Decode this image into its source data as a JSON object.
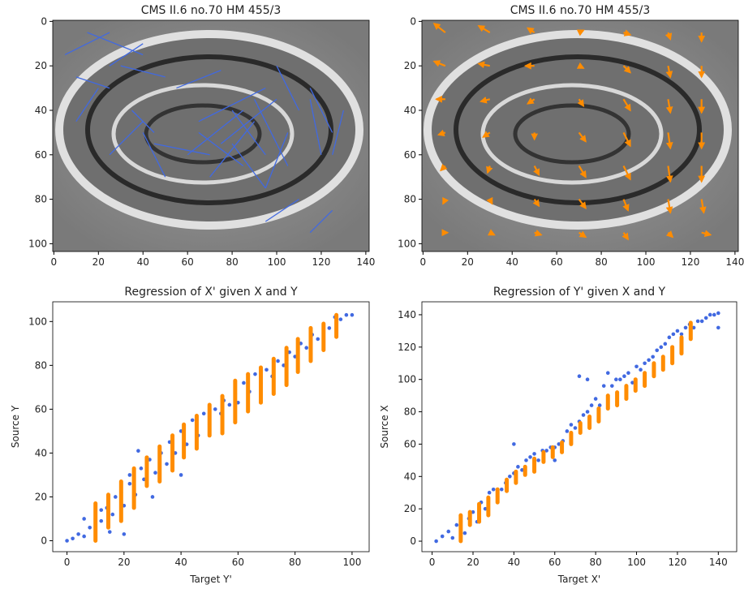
{
  "chart_data": [
    {
      "type": "quiver",
      "title": "CMS II.6 no.70 HM 455/3",
      "color": "#4169e1",
      "arrowheads": false,
      "xlim": [
        -0.5,
        141.5
      ],
      "ylim": [
        103.5,
        -0.5
      ],
      "xticks": [
        0,
        20,
        40,
        60,
        80,
        100,
        120,
        140
      ],
      "yticks": [
        0,
        20,
        40,
        60,
        80,
        100
      ],
      "x": [
        5,
        10,
        15,
        20,
        25,
        30,
        35,
        40,
        45,
        50,
        55,
        60,
        65,
        70,
        75,
        80,
        85,
        90,
        95,
        100,
        105,
        110,
        115,
        120,
        125,
        130
      ],
      "y": [
        15,
        25,
        5,
        30,
        60,
        20,
        40,
        10,
        55,
        70,
        30,
        60,
        45,
        70,
        55,
        40,
        65,
        35,
        75,
        20,
        50,
        80,
        30,
        60,
        85,
        40
      ],
      "u": [
        20,
        15,
        25,
        -10,
        15,
        20,
        10,
        -15,
        25,
        -10,
        20,
        25,
        30,
        20,
        25,
        15,
        -20,
        15,
        -15,
        10,
        -10,
        -15,
        10,
        -5,
        -10,
        -5
      ],
      "v": [
        -10,
        5,
        10,
        15,
        -15,
        5,
        10,
        10,
        5,
        -20,
        -8,
        -20,
        -15,
        -25,
        -20,
        20,
        -15,
        30,
        -20,
        20,
        25,
        10,
        20,
        -25,
        10,
        20
      ]
    },
    {
      "type": "quiver",
      "title": "CMS II.6 no.70 HM 455/3",
      "color": "#ff8c00",
      "arrowheads": true,
      "xlim": [
        -0.5,
        141.5
      ],
      "ylim": [
        103.5,
        -0.5
      ],
      "xticks": [
        0,
        20,
        40,
        60,
        80,
        100,
        120,
        140
      ],
      "yticks": [
        0,
        20,
        40,
        60,
        80,
        100
      ],
      "x": [
        10,
        30,
        50,
        70,
        90,
        110,
        125,
        10,
        30,
        50,
        70,
        90,
        110,
        125,
        10,
        30,
        50,
        70,
        90,
        110,
        125,
        10,
        30,
        50,
        70,
        90,
        110,
        125,
        10,
        30,
        50,
        70,
        90,
        110,
        125,
        10,
        30,
        50,
        70,
        90,
        110,
        125,
        10,
        30,
        50,
        70,
        90,
        110,
        125
      ],
      "y": [
        5,
        5,
        5,
        5,
        5,
        5,
        5,
        20,
        20,
        20,
        20,
        20,
        20,
        20,
        35,
        35,
        35,
        35,
        35,
        35,
        35,
        50,
        50,
        50,
        50,
        50,
        50,
        50,
        65,
        65,
        65,
        65,
        65,
        65,
        65,
        80,
        80,
        80,
        80,
        80,
        80,
        80,
        95,
        95,
        95,
        95,
        95,
        95,
        95
      ],
      "u": [
        -5,
        -5,
        -3,
        2,
        3,
        1,
        0,
        -5,
        -5,
        -4,
        2,
        3,
        1,
        0,
        -4,
        -4,
        -3,
        2,
        3,
        1,
        0,
        -3,
        -3,
        0,
        3,
        3,
        1,
        0,
        -2,
        -1,
        2,
        3,
        3,
        1,
        0,
        -1,
        1,
        2,
        3,
        2,
        1,
        1,
        1,
        2,
        3,
        3,
        2,
        2,
        4
      ],
      "v": [
        -4,
        -3,
        -2,
        -1,
        1,
        3,
        4,
        -2,
        -1,
        0,
        1,
        3,
        5,
        5,
        0,
        1,
        2,
        3,
        5,
        6,
        6,
        1,
        2,
        3,
        4,
        6,
        7,
        7,
        2,
        3,
        4,
        5,
        6,
        7,
        7,
        2,
        2,
        3,
        4,
        5,
        6,
        6,
        0,
        1,
        1,
        2,
        3,
        2,
        1
      ]
    },
    {
      "type": "scatter",
      "title": "Regression of X' given X and Y",
      "xlabel": "Target Y'",
      "ylabel": "Source Y",
      "xlim": [
        -5,
        106
      ],
      "ylim": [
        -5,
        109
      ],
      "xticks": [
        0,
        20,
        40,
        60,
        80,
        100
      ],
      "yticks": [
        0,
        20,
        40,
        60,
        80,
        100
      ],
      "series": [
        {
          "color": "#4169e1",
          "x": [
            0,
            2,
            4,
            6,
            8,
            10,
            12,
            12,
            14,
            16,
            17,
            19,
            20,
            22,
            22,
            24,
            26,
            27,
            29,
            31,
            33,
            35,
            36,
            38,
            40,
            42,
            44,
            46,
            48,
            50,
            52,
            54,
            55,
            57,
            59,
            60,
            62,
            64,
            66,
            68,
            70,
            72,
            74,
            76,
            78,
            80,
            82,
            84,
            86,
            88,
            90,
            92,
            94,
            96,
            98,
            100,
            20,
            15,
            30,
            40,
            50,
            25,
            6
          ],
          "y": [
            0,
            1,
            3,
            2,
            6,
            10,
            9,
            14,
            15,
            12,
            20,
            22,
            16,
            26,
            30,
            21,
            33,
            28,
            37,
            31,
            40,
            35,
            45,
            40,
            50,
            44,
            55,
            48,
            58,
            53,
            60,
            58,
            64,
            62,
            67,
            63,
            72,
            68,
            76,
            72,
            78,
            75,
            82,
            80,
            86,
            84,
            90,
            88,
            94,
            92,
            98,
            97,
            102,
            101,
            103,
            103,
            3,
            4,
            20,
            30,
            60,
            41,
            10
          ]
        },
        {
          "color": "#ff8c00",
          "x": [
            10,
            14.5,
            19,
            23.5,
            28,
            32.5,
            37,
            41,
            45.5,
            50,
            54.5,
            59,
            63.5,
            68,
            72.5,
            77,
            81,
            85.5,
            90,
            94.5
          ],
          "low": [
            0,
            6,
            9,
            15,
            25,
            27,
            32,
            38,
            42,
            48,
            49,
            54,
            59,
            63,
            67,
            71,
            77,
            82,
            87,
            93
          ],
          "high": [
            17,
            21,
            27,
            33,
            38,
            43,
            48,
            53,
            57,
            62,
            66,
            73,
            76,
            79,
            83,
            88,
            92,
            97,
            99,
            103
          ]
        }
      ]
    },
    {
      "type": "scatter",
      "title": "Regression of Y' given X and Y",
      "xlabel": "Target X'",
      "ylabel": "Source X",
      "xlim": [
        -5,
        149
      ],
      "ylim": [
        -6.5,
        148
      ],
      "xticks": [
        0,
        20,
        40,
        60,
        80,
        100,
        120,
        140
      ],
      "yticks": [
        0,
        20,
        40,
        60,
        80,
        100,
        120,
        140
      ],
      "series": [
        {
          "color": "#4169e1",
          "x": [
            2,
            5,
            8,
            10,
            12,
            14,
            16,
            18,
            20,
            22,
            24,
            26,
            28,
            30,
            32,
            34,
            36,
            38,
            40,
            42,
            44,
            46,
            48,
            50,
            52,
            54,
            56,
            58,
            60,
            62,
            64,
            66,
            68,
            70,
            72,
            74,
            76,
            78,
            80,
            82,
            84,
            86,
            88,
            90,
            92,
            94,
            96,
            98,
            100,
            102,
            104,
            106,
            108,
            110,
            112,
            114,
            116,
            118,
            120,
            122,
            124,
            126,
            128,
            130,
            132,
            134,
            136,
            138,
            140,
            140,
            76,
            72,
            40,
            60
          ],
          "y": [
            0,
            3,
            6,
            2,
            10,
            12,
            5,
            14,
            18,
            12,
            24,
            20,
            30,
            32,
            28,
            32,
            36,
            40,
            42,
            46,
            44,
            50,
            52,
            54,
            50,
            56,
            56,
            58,
            58,
            60,
            62,
            68,
            72,
            70,
            74,
            78,
            80,
            84,
            88,
            84,
            96,
            104,
            96,
            100,
            100,
            102,
            104,
            98,
            108,
            106,
            110,
            112,
            114,
            118,
            120,
            122,
            126,
            128,
            130,
            128,
            132,
            134,
            132,
            136,
            136,
            138,
            140,
            140,
            141,
            132,
            100,
            102,
            60,
            50
          ]
        },
        {
          "color": "#ff8c00",
          "x": [
            14,
            18.5,
            23,
            27.5,
            32,
            36.5,
            41,
            45.5,
            50,
            54.5,
            59,
            63.5,
            68,
            72.5,
            77,
            81.5,
            86,
            90.5,
            95,
            99.5,
            104,
            108.5,
            113,
            117.5,
            122,
            126.5
          ],
          "low": [
            0,
            10,
            12,
            16,
            24,
            31,
            36,
            41,
            43,
            49,
            52,
            55,
            60,
            67,
            70,
            74,
            82,
            84,
            88,
            93,
            96,
            102,
            106,
            110,
            116,
            125
          ],
          "high": [
            16,
            18,
            23,
            27,
            32,
            38,
            43,
            46,
            51,
            55,
            58,
            61,
            67,
            73,
            77,
            82,
            90,
            92,
            96,
            100,
            104,
            110,
            114,
            120,
            126,
            135
          ]
        }
      ]
    }
  ]
}
